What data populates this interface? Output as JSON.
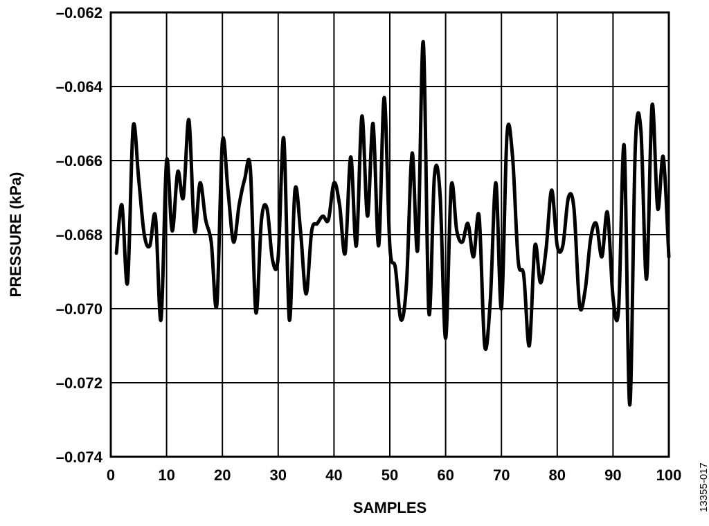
{
  "chart_data": {
    "type": "line",
    "title": "",
    "xlabel": "SAMPLES",
    "ylabel": "PRESSURE (kPa)",
    "xlim": [
      0,
      100
    ],
    "ylim": [
      -0.074,
      -0.062
    ],
    "xticks": [
      0,
      10,
      20,
      30,
      40,
      50,
      60,
      70,
      80,
      90,
      100
    ],
    "xtick_labels": [
      "0",
      "10",
      "20",
      "30",
      "40",
      "50",
      "60",
      "70",
      "80",
      "90",
      "100"
    ],
    "yticks": [
      -0.062,
      -0.064,
      -0.066,
      -0.068,
      -0.07,
      -0.072,
      -0.074
    ],
    "ytick_labels": [
      "–0.062",
      "–0.064",
      "–0.066",
      "–0.068",
      "–0.070",
      "–0.072",
      "–0.074"
    ],
    "grid": true,
    "line_color": "#000000",
    "series": [
      {
        "x": [
          1,
          2,
          3,
          4,
          5,
          6,
          7,
          8,
          9,
          10,
          11,
          12,
          13,
          14,
          15,
          16,
          17,
          18,
          19,
          20,
          21,
          22,
          23,
          24,
          25,
          26,
          27,
          28,
          29,
          30,
          31,
          32,
          33,
          34,
          35,
          36,
          37,
          38,
          39,
          40,
          41,
          42,
          43,
          44,
          45,
          46,
          47,
          48,
          49,
          50,
          51,
          52,
          53,
          54,
          55,
          56,
          57,
          58,
          59,
          60,
          61,
          62,
          63,
          64,
          65,
          66,
          67,
          68,
          69,
          70,
          71,
          72,
          73,
          74,
          75,
          76,
          77,
          78,
          79,
          80,
          81,
          82,
          83,
          84,
          85,
          86,
          87,
          88,
          89,
          90,
          91,
          92,
          93,
          94,
          95,
          96,
          97,
          98,
          99,
          100
        ],
        "values": [
          -0.0685,
          -0.0672,
          -0.0693,
          -0.0651,
          -0.0665,
          -0.068,
          -0.0683,
          -0.0675,
          -0.0703,
          -0.066,
          -0.0679,
          -0.0663,
          -0.067,
          -0.0649,
          -0.0679,
          -0.0666,
          -0.0676,
          -0.0682,
          -0.0699,
          -0.0655,
          -0.0668,
          -0.0682,
          -0.0672,
          -0.0665,
          -0.0662,
          -0.0701,
          -0.0676,
          -0.0673,
          -0.0687,
          -0.0686,
          -0.0654,
          -0.0703,
          -0.0668,
          -0.0679,
          -0.0696,
          -0.0679,
          -0.0677,
          -0.0675,
          -0.0676,
          -0.0666,
          -0.0672,
          -0.0685,
          -0.0659,
          -0.0683,
          -0.0648,
          -0.0675,
          -0.065,
          -0.0683,
          -0.0643,
          -0.0683,
          -0.0689,
          -0.0703,
          -0.0693,
          -0.0658,
          -0.0684,
          -0.0628,
          -0.0701,
          -0.0664,
          -0.0669,
          -0.0708,
          -0.0667,
          -0.0679,
          -0.0682,
          -0.0677,
          -0.0686,
          -0.0675,
          -0.071,
          -0.0698,
          -0.0666,
          -0.07,
          -0.0653,
          -0.0659,
          -0.0687,
          -0.0691,
          -0.071,
          -0.0683,
          -0.0693,
          -0.0684,
          -0.0668,
          -0.0683,
          -0.0683,
          -0.067,
          -0.0673,
          -0.0699,
          -0.0695,
          -0.0681,
          -0.0677,
          -0.0686,
          -0.0674,
          -0.0697,
          -0.07,
          -0.0656,
          -0.0726,
          -0.0656,
          -0.0652,
          -0.0692,
          -0.0645,
          -0.0673,
          -0.0659,
          -0.0686
        ]
      }
    ]
  },
  "figure_id": "13355-017"
}
